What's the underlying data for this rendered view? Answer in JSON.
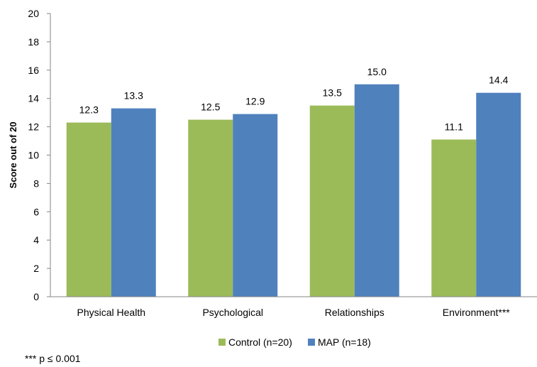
{
  "chart_data": {
    "type": "bar",
    "categories": [
      "Physical Health",
      "Psychological",
      "Relationships",
      "Environment***"
    ],
    "series": [
      {
        "name": "Control (n=20)",
        "values": [
          12.3,
          12.5,
          13.5,
          11.1
        ],
        "labels": [
          "12.3",
          "12.5",
          "13.5",
          "11.1"
        ],
        "color": "#9BBB59"
      },
      {
        "name": "MAP (n=18)",
        "values": [
          13.3,
          12.9,
          15.0,
          14.4
        ],
        "labels": [
          "13.3",
          "12.9",
          "15.0",
          "14.4"
        ],
        "color": "#4F81BD"
      }
    ],
    "title": "",
    "xlabel": "",
    "ylabel": "Score out of 20",
    "ylim": [
      0,
      20
    ],
    "yticks": [
      "0",
      "2",
      "4",
      "6",
      "8",
      "10",
      "12",
      "14",
      "16",
      "18",
      "20"
    ],
    "grid": false,
    "legend": "bottom"
  },
  "footnote": "*** p ≤ 0.001"
}
